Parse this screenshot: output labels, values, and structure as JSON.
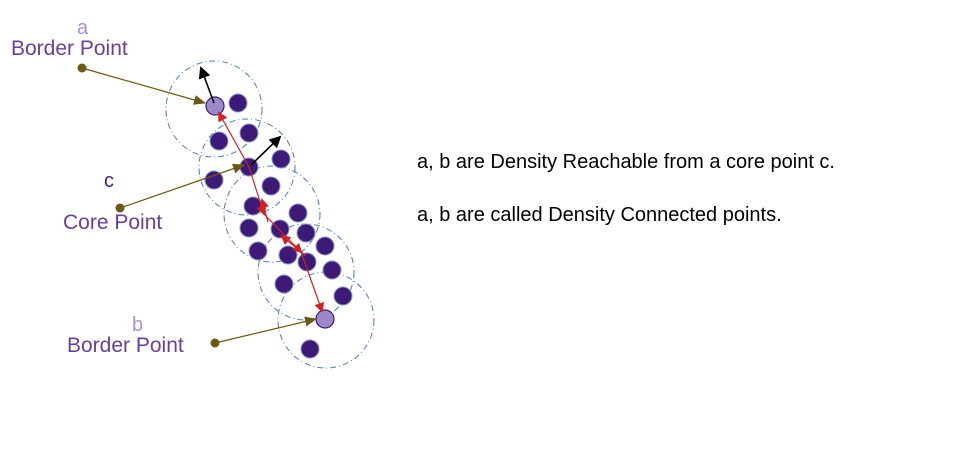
{
  "labels": {
    "a_letter": "a",
    "a_name": "Border Point",
    "c_letter": "c",
    "c_name": "Core Point",
    "b_letter": "b",
    "b_name": "Border Point"
  },
  "notes": [
    "a, b are Density Reachable from a core point c.",
    "a, b are called Density Connected points."
  ],
  "colors": {
    "core_point": "#3d1a78",
    "border_point": "#9a88c8",
    "neighborhood_circle": "#4a7db0",
    "pointer_line": "#6b5a12",
    "reachability_arrow": "#d42020",
    "direction_arrow": "#000000"
  }
}
